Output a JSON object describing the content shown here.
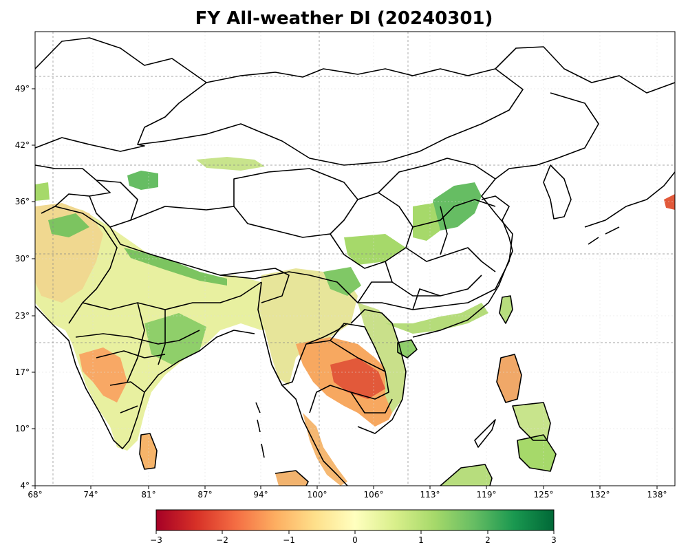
{
  "title": "FY All-weather DI (20240301)",
  "map": {
    "lon_range": [
      68,
      140
    ],
    "lat_range": [
      4,
      55
    ],
    "lon_ticks": [
      "68°",
      "74°",
      "81°",
      "87°",
      "94°",
      "100°",
      "106°",
      "113°",
      "119°",
      "125°",
      "132°",
      "138°"
    ],
    "lat_ticks": [
      "4°",
      "10°",
      "17°",
      "23°",
      "30°",
      "36°",
      "42°",
      "49°"
    ],
    "gridlines": true,
    "features": [
      "country-borders",
      "province-borders",
      "coastlines"
    ]
  },
  "colorbar": {
    "min": -3,
    "max": 3,
    "tick_labels": [
      "−3",
      "−2",
      "−1",
      "0",
      "1",
      "2",
      "3"
    ],
    "colors": [
      "#a50026",
      "#d73027",
      "#f46d43",
      "#fdae61",
      "#fee08b",
      "#ffffbf",
      "#d9ef8b",
      "#a6d96a",
      "#66bd63",
      "#1a9850",
      "#006837"
    ]
  }
}
